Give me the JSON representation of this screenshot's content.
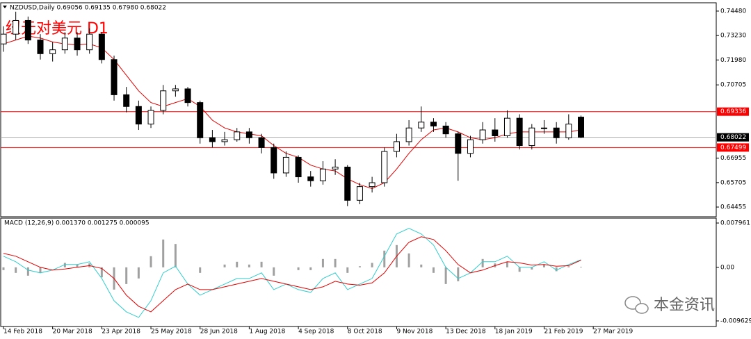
{
  "chart_data": [
    {
      "type": "candlestick",
      "header": "NZDUSD,Daily 0.69056 0.69135 0.67980 0.68022",
      "title": "纽元对美元 D1",
      "watermark": "本金资讯",
      "categories": [
        "14 Feb 2018",
        null,
        null,
        null,
        "20 Mar 2018",
        null,
        null,
        null,
        "23 Apr 2018",
        null,
        null,
        null,
        "25 May 2018",
        null,
        null,
        null,
        "28 Jun 2018",
        null,
        null,
        null,
        "1 Aug 2018",
        null,
        null,
        null,
        "4 Sep 2018",
        null,
        null,
        null,
        "8 Oct 2018",
        null,
        null,
        null,
        "9 Nov 2018",
        null,
        null,
        null,
        "13 Dec 2018",
        null,
        null,
        null,
        "18 Jan 2019",
        null,
        null,
        null,
        "21 Feb 2019",
        null,
        null,
        null,
        "27 Mar 2019"
      ],
      "open": [
        0.728,
        0.733,
        0.74,
        0.73,
        0.723,
        0.725,
        0.731,
        0.725,
        0.733,
        0.72,
        0.702,
        0.696,
        0.687,
        0.694,
        0.704,
        0.705,
        0.698,
        0.68,
        0.678,
        0.679,
        0.683,
        0.68,
        0.675,
        0.662,
        0.67,
        0.66,
        0.658,
        0.664,
        0.665,
        0.648,
        0.655,
        0.657,
        0.673,
        0.678,
        0.685,
        0.688,
        0.686,
        0.682,
        0.672,
        0.679,
        0.684,
        0.681,
        0.69,
        0.676,
        0.685,
        0.685,
        0.68,
        0.69056,
        null
      ],
      "high": [
        0.737,
        0.7445,
        0.742,
        0.733,
        0.729,
        0.734,
        0.734,
        0.736,
        0.734,
        0.722,
        0.706,
        0.699,
        0.696,
        0.707,
        0.707,
        0.706,
        0.699,
        0.684,
        0.683,
        0.685,
        0.685,
        0.682,
        0.677,
        0.673,
        0.671,
        0.663,
        0.668,
        0.669,
        0.666,
        0.657,
        0.66,
        0.675,
        0.682,
        0.689,
        0.696,
        0.69,
        0.688,
        0.683,
        0.681,
        0.688,
        0.69,
        0.694,
        0.692,
        0.687,
        0.689,
        0.688,
        0.692,
        0.69135,
        null
      ],
      "low": [
        0.724,
        0.73,
        0.728,
        0.72,
        0.719,
        0.723,
        0.722,
        0.723,
        0.718,
        0.699,
        0.693,
        0.684,
        0.685,
        0.692,
        0.701,
        0.696,
        0.677,
        0.675,
        0.676,
        0.678,
        0.677,
        0.672,
        0.659,
        0.66,
        0.657,
        0.655,
        0.656,
        0.661,
        0.645,
        0.646,
        0.652,
        0.655,
        0.67,
        0.676,
        0.683,
        0.683,
        0.68,
        0.658,
        0.67,
        0.677,
        0.678,
        0.68,
        0.674,
        0.674,
        0.682,
        0.677,
        0.679,
        0.6798,
        null
      ],
      "close": [
        0.733,
        0.74,
        0.73,
        0.723,
        0.725,
        0.731,
        0.725,
        0.733,
        0.72,
        0.702,
        0.696,
        0.687,
        0.694,
        0.704,
        0.705,
        0.698,
        0.68,
        0.678,
        0.679,
        0.683,
        0.68,
        0.675,
        0.662,
        0.67,
        0.66,
        0.658,
        0.664,
        0.665,
        0.648,
        0.655,
        0.657,
        0.673,
        0.678,
        0.685,
        0.688,
        0.686,
        0.682,
        0.672,
        0.679,
        0.684,
        0.681,
        0.69,
        0.676,
        0.685,
        0.685,
        0.68,
        0.687,
        0.68022,
        null
      ],
      "ma": {
        "color": "#e00000",
        "values": [
          0.728,
          0.73,
          0.732,
          0.731,
          0.729,
          0.728,
          0.7275,
          0.728,
          0.726,
          0.72,
          0.712,
          0.704,
          0.698,
          0.696,
          0.698,
          0.7,
          0.696,
          0.689,
          0.685,
          0.683,
          0.682,
          0.681,
          0.676,
          0.672,
          0.67,
          0.666,
          0.664,
          0.663,
          0.659,
          0.656,
          0.654,
          0.657,
          0.664,
          0.672,
          0.679,
          0.684,
          0.685,
          0.683,
          0.68,
          0.679,
          0.68,
          0.682,
          0.683,
          0.683,
          0.683,
          0.683,
          0.683,
          0.684,
          null
        ]
      },
      "hlines": [
        {
          "value": 0.69336,
          "color": "#ff0000"
        },
        {
          "value": 0.68022,
          "color": "#000000"
        },
        {
          "value": 0.67499,
          "color": "#ff0000"
        }
      ],
      "ylim": [
        0.63959,
        0.74905
      ],
      "yticks": [
        {
          "value": 0.7448,
          "label": "0.74480"
        },
        {
          "value": 0.7323,
          "label": "0.73230"
        },
        {
          "value": 0.7198,
          "label": "0.71980"
        },
        0.70705,
        0.66955,
        0.65705,
        0.64455
      ]
    },
    {
      "type": "macd",
      "header": "MACD (12,26,9) 0.001370 0.001275 0.000095",
      "series": [
        {
          "style": "histogram",
          "color": "#a0a0a0",
          "values": [
            -0.0005,
            -0.001,
            -0.0015,
            -0.001,
            0,
            0.0008,
            0.0005,
            0.0007,
            -0.0018,
            -0.004,
            -0.003,
            -0.002,
            0.002,
            0.005,
            0.0042,
            0,
            -0.001,
            0,
            0.0005,
            0.001,
            0.0005,
            0.001,
            -0.0015,
            0,
            -0.0005,
            -0.0005,
            0.0015,
            0.0015,
            -0.001,
            0.0002,
            0.0008,
            0.003,
            0.004,
            0.0025,
            0.0005,
            -0.001,
            -0.003,
            -0.0025,
            0,
            0.0015,
            0.0007,
            0.001,
            -0.0008,
            -0.0004,
            0.0005,
            -0.0007,
            0.0002,
            9.5e-05,
            null
          ]
        },
        {
          "style": "line",
          "color": "#33cccc",
          "values": [
            0.002,
            0.001,
            -0.0005,
            -0.001,
            -0.0005,
            0.0005,
            0.0005,
            0.001,
            -0.002,
            -0.006,
            -0.008,
            -0.009,
            -0.006,
            -0.001,
            0.0002,
            -0.003,
            -0.005,
            -0.004,
            -0.003,
            -0.002,
            -0.002,
            -0.001,
            -0.004,
            -0.003,
            -0.004,
            -0.0045,
            -0.002,
            -0.001,
            -0.004,
            -0.003,
            -0.002,
            0.002,
            0.006,
            0.007,
            0.006,
            0.004,
            0,
            -0.002,
            -0.001,
            0.001,
            0.001,
            0.002,
            0,
            0,
            0.001,
            -0.0005,
            0.0005,
            0.00137,
            null
          ]
        },
        {
          "style": "line",
          "color": "#e00000",
          "values": [
            0.0025,
            0.002,
            0.001,
            0,
            -0.0005,
            -0.0003,
            0,
            0.0003,
            -0.0002,
            -0.002,
            -0.005,
            -0.007,
            -0.008,
            -0.006,
            -0.004,
            -0.003,
            -0.004,
            -0.004,
            -0.0035,
            -0.003,
            -0.0025,
            -0.002,
            -0.0025,
            -0.003,
            -0.0035,
            -0.004,
            -0.0035,
            -0.0025,
            -0.003,
            -0.0032,
            -0.0028,
            -0.001,
            0.002,
            0.0045,
            0.0055,
            0.005,
            0.003,
            0.0005,
            -0.001,
            -0.0005,
            0.0003,
            0.001,
            0.0008,
            0.0004,
            0.0005,
            0.0002,
            0.0003,
            0.001275,
            null
          ]
        }
      ],
      "ylim": [
        -0.01063,
        0.00884
      ],
      "yticks": [
        0.007961,
        {
          "value": 0,
          "label": "0.00"
        },
        -0.009629
      ]
    }
  ]
}
